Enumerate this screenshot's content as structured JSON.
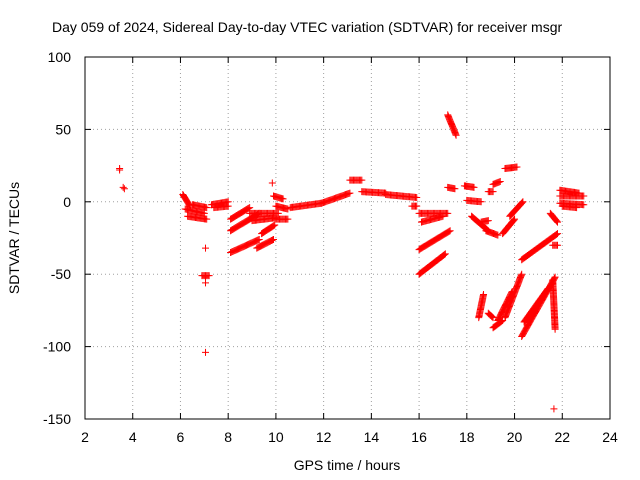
{
  "chart_data": {
    "type": "scatter",
    "title": "Day 059 of 2024, Sidereal Day-to-day VTEC variation (SDTVAR) for receiver msgr",
    "xlabel": "GPS time / hours",
    "ylabel": "SDTVAR / TECUs",
    "xlim": [
      2,
      24
    ],
    "ylim": [
      -150,
      100
    ],
    "x_ticks": [
      2,
      4,
      6,
      8,
      10,
      12,
      14,
      16,
      18,
      20,
      22,
      24
    ],
    "y_ticks": [
      -150,
      -100,
      -50,
      0,
      50,
      100
    ],
    "grid": true,
    "marker": "plus",
    "color": "#ff0000",
    "points": [
      [
        3.45,
        23
      ],
      [
        3.45,
        22
      ],
      [
        3.6,
        10
      ],
      [
        3.65,
        9
      ],
      [
        7.05,
        -32
      ],
      [
        7.05,
        -52
      ],
      [
        7.05,
        -56
      ],
      [
        7.05,
        -104
      ],
      [
        9.85,
        13
      ],
      [
        21.65,
        -143
      ]
    ],
    "segments": [
      {
        "x0": 6.1,
        "y0": 5,
        "x1": 6.4,
        "y1": -3
      },
      {
        "x0": 6.2,
        "y0": -5,
        "x1": 7.0,
        "y1": -8
      },
      {
        "x0": 6.3,
        "y0": -10,
        "x1": 7.1,
        "y1": -12
      },
      {
        "x0": 6.5,
        "y0": -2,
        "x1": 7.1,
        "y1": -4
      },
      {
        "x0": 7.3,
        "y0": -2,
        "x1": 8.0,
        "y1": 0
      },
      {
        "x0": 7.4,
        "y0": -4,
        "x1": 8.0,
        "y1": -3
      },
      {
        "x0": 6.9,
        "y0": -51,
        "x1": 7.2,
        "y1": -51
      },
      {
        "x0": 8.1,
        "y0": -35,
        "x1": 9.3,
        "y1": -26
      },
      {
        "x0": 8.1,
        "y0": -20,
        "x1": 9.3,
        "y1": -8
      },
      {
        "x0": 8.1,
        "y0": -12,
        "x1": 8.9,
        "y1": -4
      },
      {
        "x0": 8.9,
        "y0": -8,
        "x1": 10.1,
        "y1": -8
      },
      {
        "x0": 9.0,
        "y0": -13,
        "x1": 10.0,
        "y1": -11
      },
      {
        "x0": 9.2,
        "y0": -32,
        "x1": 9.9,
        "y1": -26
      },
      {
        "x0": 9.4,
        "y0": -22,
        "x1": 9.95,
        "y1": -16
      },
      {
        "x0": 9.9,
        "y0": 4,
        "x1": 10.3,
        "y1": 2
      },
      {
        "x0": 10.0,
        "y0": -3,
        "x1": 10.5,
        "y1": -5
      },
      {
        "x0": 10.0,
        "y0": -12,
        "x1": 10.5,
        "y1": -12
      },
      {
        "x0": 10.6,
        "y0": -4,
        "x1": 11.9,
        "y1": -1
      },
      {
        "x0": 11.9,
        "y0": -1,
        "x1": 13.1,
        "y1": 6
      },
      {
        "x0": 13.1,
        "y0": 15,
        "x1": 13.6,
        "y1": 15
      },
      {
        "x0": 13.6,
        "y0": 7,
        "x1": 14.6,
        "y1": 6
      },
      {
        "x0": 14.6,
        "y0": 5,
        "x1": 15.9,
        "y1": 3
      },
      {
        "x0": 15.7,
        "y0": -3,
        "x1": 15.9,
        "y1": -3
      },
      {
        "x0": 16.0,
        "y0": -8,
        "x1": 17.2,
        "y1": -8
      },
      {
        "x0": 16.1,
        "y0": -14,
        "x1": 17.0,
        "y1": -10
      },
      {
        "x0": 16.0,
        "y0": -33,
        "x1": 17.3,
        "y1": -20
      },
      {
        "x0": 16.0,
        "y0": -50,
        "x1": 17.1,
        "y1": -36
      },
      {
        "x0": 17.2,
        "y0": 60,
        "x1": 17.55,
        "y1": 46
      },
      {
        "x0": 17.2,
        "y0": 10,
        "x1": 17.5,
        "y1": 9
      },
      {
        "x0": 17.9,
        "y0": 11,
        "x1": 18.3,
        "y1": 10
      },
      {
        "x0": 18.0,
        "y0": 1,
        "x1": 18.6,
        "y1": 0
      },
      {
        "x0": 18.2,
        "y0": -10,
        "x1": 18.9,
        "y1": -20
      },
      {
        "x0": 18.5,
        "y0": -80,
        "x1": 18.7,
        "y1": -64
      },
      {
        "x0": 18.6,
        "y0": -14,
        "x1": 18.9,
        "y1": -13
      },
      {
        "x0": 18.8,
        "y0": -20,
        "x1": 19.3,
        "y1": -23
      },
      {
        "x0": 18.9,
        "y0": -77,
        "x1": 19.1,
        "y1": -80
      },
      {
        "x0": 18.9,
        "y0": 7,
        "x1": 19.1,
        "y1": 7
      },
      {
        "x0": 19.1,
        "y0": 12,
        "x1": 19.4,
        "y1": 14
      },
      {
        "x0": 19.1,
        "y0": -87,
        "x1": 19.5,
        "y1": -82
      },
      {
        "x0": 19.3,
        "y0": -82,
        "x1": 19.9,
        "y1": -62
      },
      {
        "x0": 19.5,
        "y0": -22,
        "x1": 20.0,
        "y1": -12
      },
      {
        "x0": 19.6,
        "y0": 23,
        "x1": 20.1,
        "y1": 24
      },
      {
        "x0": 19.6,
        "y0": -80,
        "x1": 20.3,
        "y1": -50
      },
      {
        "x0": 19.8,
        "y0": -10,
        "x1": 20.35,
        "y1": 0
      },
      {
        "x0": 20.3,
        "y0": -93,
        "x1": 21.7,
        "y1": -52
      },
      {
        "x0": 20.4,
        "y0": -83,
        "x1": 21.4,
        "y1": -60
      },
      {
        "x0": 20.3,
        "y0": -40,
        "x1": 21.8,
        "y1": -22
      },
      {
        "x0": 21.5,
        "y0": -8,
        "x1": 21.8,
        "y1": -14
      },
      {
        "x0": 21.6,
        "y0": -30,
        "x1": 21.8,
        "y1": -30
      },
      {
        "x0": 21.6,
        "y0": -54,
        "x1": 21.7,
        "y1": -88
      },
      {
        "x0": 21.9,
        "y0": 4,
        "x1": 22.9,
        "y1": 4
      },
      {
        "x0": 21.9,
        "y0": 8,
        "x1": 22.7,
        "y1": 6
      },
      {
        "x0": 21.9,
        "y0": -1,
        "x1": 22.9,
        "y1": -2
      },
      {
        "x0": 22.0,
        "y0": -3,
        "x1": 22.6,
        "y1": -4
      }
    ]
  }
}
